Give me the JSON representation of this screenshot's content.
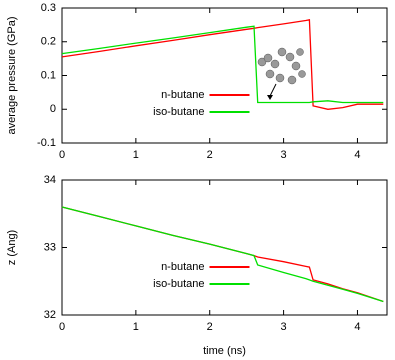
{
  "chart_data": [
    {
      "type": "line",
      "ylabel": "average pressure (GPa)",
      "x": [
        0,
        0.5,
        1,
        1.5,
        2,
        2.5,
        2.6,
        2.65,
        3,
        3.3,
        3.35,
        3.4,
        3.6,
        3.8,
        4,
        4.35
      ],
      "series": [
        {
          "name": "n-butane",
          "color": "#ff0000",
          "values": [
            0.155,
            0.171,
            0.188,
            0.204,
            0.221,
            0.237,
            0.24,
            0.242,
            0.253,
            0.263,
            0.265,
            0.01,
            0.0,
            0.005,
            0.015,
            0.015
          ]
        },
        {
          "name": "iso-butane",
          "color": "#00e000",
          "values": [
            0.165,
            0.18,
            0.196,
            0.211,
            0.227,
            0.243,
            0.246,
            0.02,
            0.02,
            0.02,
            0.02,
            0.022,
            0.025,
            0.02,
            0.02,
            0.02
          ]
        }
      ],
      "xlim": [
        0,
        4.4
      ],
      "xticks": [
        0,
        1,
        2,
        3,
        4
      ],
      "ylim": [
        -0.1,
        0.3
      ],
      "yticks": [
        -0.1,
        0,
        0.1,
        0.2,
        0.3
      ],
      "legend": "lower center"
    },
    {
      "type": "line",
      "ylabel": "z (Ang)",
      "xlabel": "time (ns)",
      "x": [
        0,
        0.5,
        1,
        1.5,
        2,
        2.5,
        2.6,
        2.65,
        3,
        3.3,
        3.35,
        3.4,
        3.6,
        3.8,
        4,
        4.35
      ],
      "series": [
        {
          "name": "n-butane",
          "color": "#ff0000",
          "values": [
            33.6,
            33.46,
            33.32,
            33.18,
            33.05,
            32.91,
            32.88,
            32.86,
            32.79,
            32.72,
            32.71,
            32.52,
            32.46,
            32.39,
            32.33,
            32.2
          ]
        },
        {
          "name": "iso-butane",
          "color": "#00e000",
          "values": [
            33.6,
            33.46,
            33.32,
            33.18,
            33.05,
            32.91,
            32.88,
            32.74,
            32.63,
            32.54,
            32.52,
            32.5,
            32.44,
            32.38,
            32.32,
            32.2
          ]
        }
      ],
      "xlim": [
        0,
        4.4
      ],
      "xticks": [
        0,
        1,
        2,
        3,
        4
      ],
      "ylim": [
        32,
        34
      ],
      "yticks": [
        32,
        33,
        34
      ],
      "legend": "lower center"
    }
  ]
}
